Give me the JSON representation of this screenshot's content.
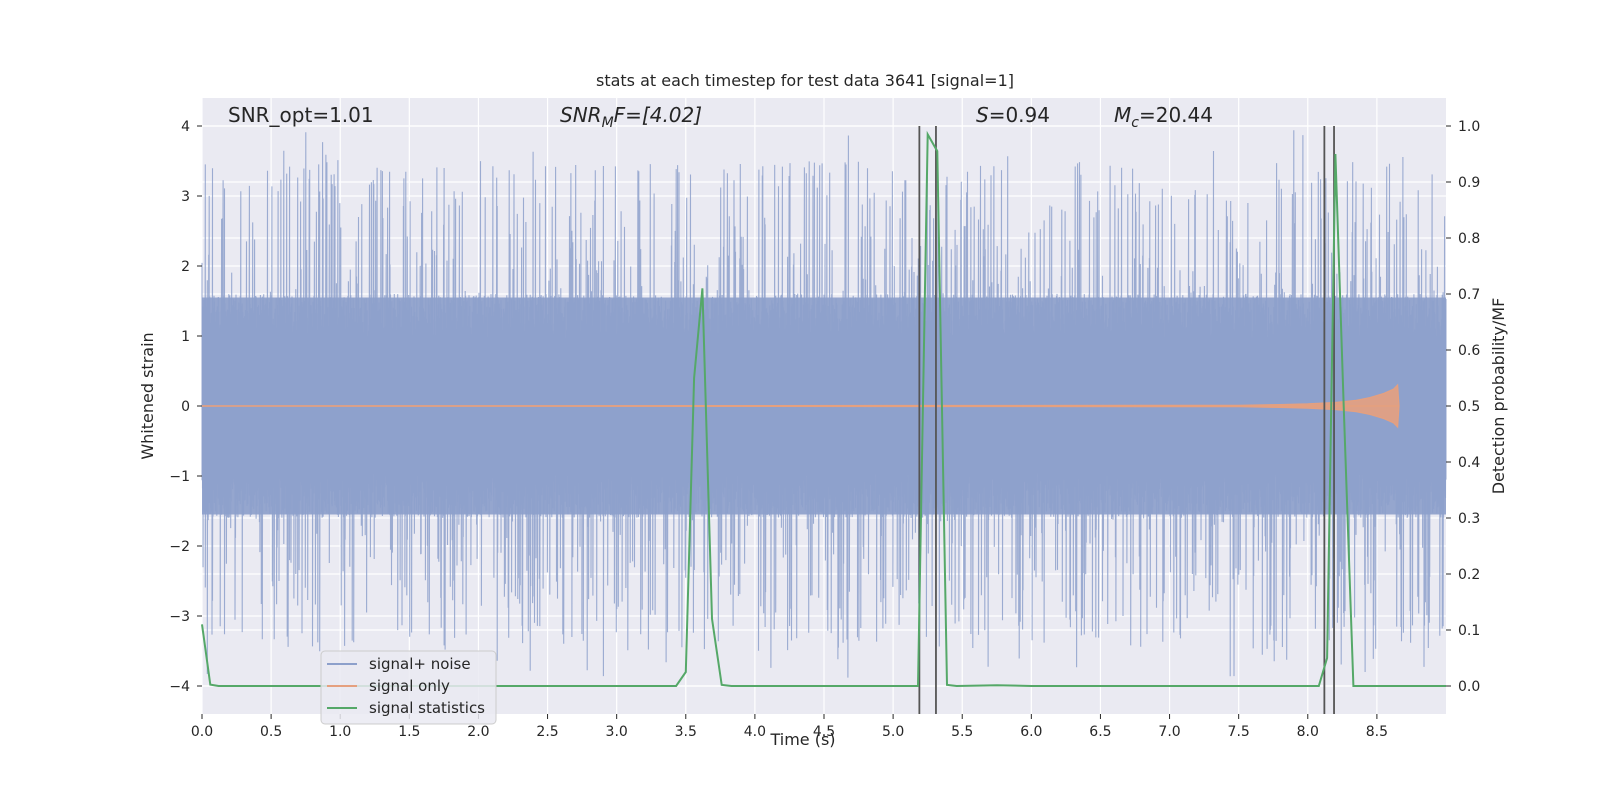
{
  "chart_data": {
    "type": "line",
    "title": "stats at each timestep for test data 3641 [signal=1]",
    "xlabel": "Time (s)",
    "ylabel_left": "Whitened strain",
    "ylabel_right": "Detection probability/MF",
    "xlim": [
      0.0,
      9.0
    ],
    "ylim_left": [
      -4.4,
      4.4
    ],
    "ylim_right": [
      -0.05,
      1.05
    ],
    "x_ticks": [
      0.0,
      0.5,
      1.0,
      1.5,
      2.0,
      2.5,
      3.0,
      3.5,
      4.0,
      4.5,
      5.0,
      5.5,
      6.0,
      6.5,
      7.0,
      7.5,
      8.0,
      8.5
    ],
    "x_tick_labels": [
      "0.0",
      "0.5",
      "1.0",
      "1.5",
      "2.0",
      "2.5",
      "3.0",
      "3.5",
      "4.0",
      "4.5",
      "5.0",
      "5.5",
      "6.0",
      "6.5",
      "7.0",
      "7.5",
      "8.0",
      "8.5"
    ],
    "y_left_ticks": [
      -4,
      -3,
      -2,
      -1,
      0,
      1,
      2,
      3,
      4
    ],
    "y_left_tick_labels": [
      "−4",
      "−3",
      "−2",
      "−1",
      "0",
      "1",
      "2",
      "3",
      "4"
    ],
    "y_right_ticks": [
      0.0,
      0.1,
      0.2,
      0.3,
      0.4,
      0.5,
      0.6,
      0.7,
      0.8,
      0.9,
      1.0
    ],
    "y_right_tick_labels": [
      "0.0",
      "0.1",
      "0.2",
      "0.3",
      "0.4",
      "0.5",
      "0.6",
      "0.7",
      "0.8",
      "0.9",
      "1.0"
    ],
    "grid": true,
    "legend_position": "bottom-left",
    "annotations": {
      "snr_opt": "SNR_opt=1.01",
      "snr_mf_main": "SNR",
      "snr_mf_sub": "M",
      "snr_mf_rest": "F=[4.02]",
      "s_main": "S",
      "s_rest": "=0.94",
      "mc_main": "M",
      "mc_sub": "c",
      "mc_rest": "=20.44"
    },
    "series": [
      {
        "name": "signal+ noise",
        "color": "#8da0cb",
        "axis": "left",
        "description_values": {
          "typical_band": [
            -1.6,
            1.6
          ],
          "peak_max": 3.95,
          "peak_min": -3.9
        }
      },
      {
        "name": "signal only",
        "color": "#e5a07f",
        "axis": "left",
        "x": [
          0.0,
          7.5,
          7.8,
          8.0,
          8.2,
          8.35,
          8.45,
          8.55,
          8.62,
          8.65,
          8.66
        ],
        "envelope": [
          0.0,
          0.01,
          0.02,
          0.03,
          0.05,
          0.08,
          0.12,
          0.18,
          0.24,
          0.3,
          0.0
        ]
      },
      {
        "name": "signal statistics",
        "color": "#55a868",
        "axis": "right",
        "x": [
          0.0,
          0.06,
          0.12,
          3.43,
          3.5,
          3.56,
          3.62,
          3.69,
          3.76,
          3.83,
          5.18,
          5.25,
          5.32,
          5.39,
          5.46,
          5.75,
          6.0,
          8.08,
          8.14,
          8.2,
          8.26,
          8.33,
          8.4,
          9.0
        ],
        "y": [
          0.11,
          0.0025,
          0.0,
          0.0,
          0.025,
          0.55,
          0.71,
          0.12,
          0.002,
          0.0,
          0.0,
          0.985,
          0.955,
          0.002,
          0.0,
          0.0015,
          0.0,
          0.0,
          0.05,
          0.95,
          0.5,
          0.0,
          0.0,
          0.0
        ]
      }
    ],
    "vertical_lines": {
      "color": "#555555",
      "x": [
        5.19,
        5.31,
        8.12,
        8.19
      ],
      "ymax": 1.0
    }
  }
}
